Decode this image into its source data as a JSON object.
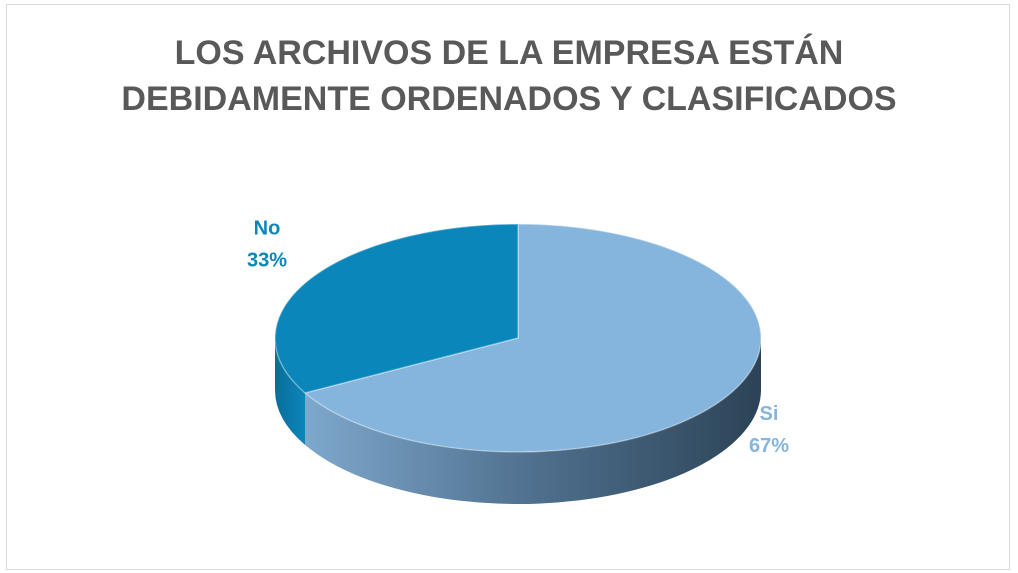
{
  "chart_data": {
    "type": "pie",
    "title": "LOS ARCHIVOS DE LA EMPRESA ESTÁN DEBIDAMENTE ORDENADOS Y CLASIFICADOS",
    "categories": [
      "Si",
      "No"
    ],
    "values": [
      67,
      33
    ],
    "value_labels": [
      "67%",
      "33%"
    ],
    "colors": [
      "#85b5dd",
      "#0b86bb"
    ]
  }
}
